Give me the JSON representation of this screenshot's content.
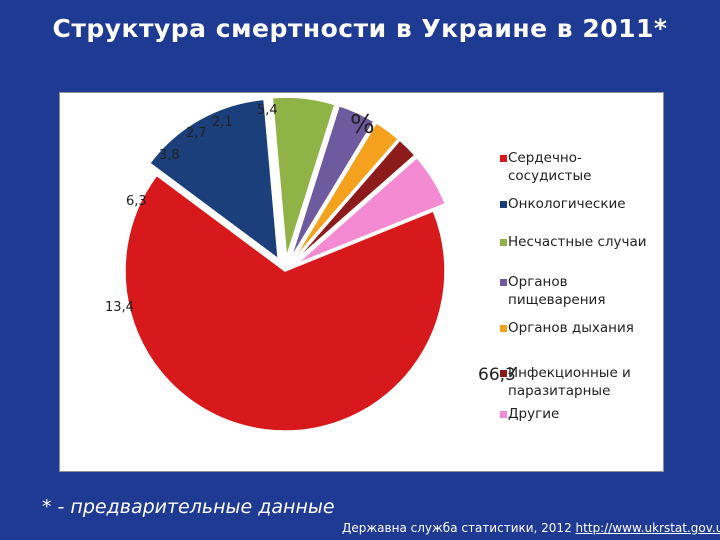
{
  "title": "Структура смертности в Украине в 2011*",
  "footnote": "* - предварительные данные",
  "source": {
    "text": "Державна служба статистики, 2012",
    "link": "http://www.ukrstat.gov.ua/"
  },
  "colors": {
    "background": "#1f3a93",
    "panel": "#ffffff"
  },
  "chart_data": {
    "type": "pie",
    "title": "",
    "unit_label": "%",
    "legend_position": "right",
    "slices": [
      {
        "label": "Сердечно-сосудистые",
        "legend_lines": [
          "Сердечно-",
          "сосудистые"
        ],
        "value": 66.3,
        "display": "66,3",
        "color": "#d7191c",
        "exploded": false
      },
      {
        "label": "Онкологические",
        "legend_lines": [
          "Онкологические"
        ],
        "value": 13.4,
        "display": "13,4",
        "color": "#1b3f7a",
        "exploded": true
      },
      {
        "label": "Несчастные случаи",
        "legend_lines": [
          "Несчастные случаи"
        ],
        "value": 6.3,
        "display": "6,3",
        "color": "#8fb347",
        "exploded": true
      },
      {
        "label": "Органов пищеварения",
        "legend_lines": [
          "Органов",
          "пищеварения"
        ],
        "value": 3.8,
        "display": "3,8",
        "color": "#6e5a9e",
        "exploded": true
      },
      {
        "label": "Органов дыхания",
        "legend_lines": [
          "Органов дыхания"
        ],
        "value": 2.7,
        "display": "2,7",
        "color": "#f4a11e",
        "exploded": true
      },
      {
        "label": "Инфекционные и паразитарные",
        "legend_lines": [
          "Инфекционные и",
          "паразитарные"
        ],
        "value": 2.1,
        "display": "2,1",
        "color": "#8e1b1b",
        "exploded": true
      },
      {
        "label": "Другие",
        "legend_lines": [
          "Другие"
        ],
        "value": 5.4,
        "display": "5,4",
        "color": "#f48ad2",
        "exploded": true
      }
    ]
  }
}
